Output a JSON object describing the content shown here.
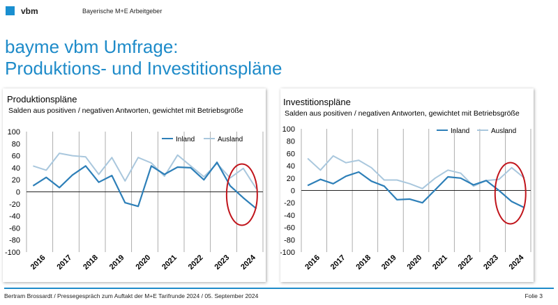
{
  "header": {
    "logo": "vbm",
    "org": "Bayerische M+E Arbeitgeber"
  },
  "title": {
    "line1": "bayme vbm Umfrage:",
    "line2": "Produktions- und Investitionspläne"
  },
  "colors": {
    "inland": "#2d7fb8",
    "ausland": "#a9c7dd",
    "highlight": "#c0141b",
    "accent": "#1e8bc9"
  },
  "footer": {
    "text": "Bertram Brossardt  /  Pressegespräch zum Auftakt der M+E Tarifrunde 2024  /  05. September 2024",
    "page": "Folie 3"
  },
  "chart_data": [
    {
      "type": "line",
      "title": "Produktionspläne",
      "subtitle": "Salden aus positiven / negativen Antworten, gewichtet mit Betriebsgröße",
      "ylim": [
        -100,
        100
      ],
      "yticks": [
        100,
        80,
        60,
        40,
        20,
        0,
        -20,
        -40,
        -60,
        -80,
        -100
      ],
      "years": [
        "2016",
        "2017",
        "2018",
        "2019",
        "2020",
        "2021",
        "2022",
        "2023",
        "2024"
      ],
      "grid": true,
      "legend": "top-right",
      "highlight": "2024",
      "series": [
        {
          "name": "Inland",
          "values": [
            10,
            24,
            7,
            28,
            43,
            16,
            27,
            -18,
            -24,
            43,
            29,
            41,
            40,
            20,
            49,
            10,
            -10,
            -28
          ]
        },
        {
          "name": "Ausland",
          "values": [
            43,
            36,
            64,
            60,
            58,
            29,
            57,
            18,
            57,
            48,
            26,
            61,
            43,
            25,
            47,
            23,
            39,
            5
          ]
        }
      ]
    },
    {
      "type": "line",
      "title": "Investitionspläne",
      "subtitle": "Salden aus positiven / negativen Antworten, gewichtet mit Betriebsgröße",
      "ylim": [
        -100,
        100
      ],
      "yticks": [
        100,
        80,
        60,
        40,
        20,
        0,
        -20,
        -40,
        -60,
        -80,
        -100
      ],
      "years": [
        "2016",
        "2017",
        "2018",
        "2019",
        "2020",
        "2021",
        "2022",
        "2023",
        "2024"
      ],
      "grid": true,
      "legend": "top-right",
      "highlight": "2024",
      "series": [
        {
          "name": "Inland",
          "values": [
            8,
            18,
            11,
            23,
            30,
            15,
            7,
            -15,
            -14,
            -20,
            1,
            22,
            20,
            9,
            16,
            0,
            -18,
            -28
          ]
        },
        {
          "name": "Ausland",
          "values": [
            52,
            33,
            56,
            45,
            49,
            37,
            17,
            17,
            11,
            3,
            20,
            33,
            28,
            7,
            16,
            18,
            37,
            20
          ]
        }
      ]
    }
  ]
}
